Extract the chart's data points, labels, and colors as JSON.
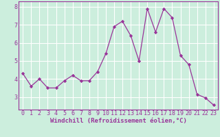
{
  "x": [
    0,
    1,
    2,
    3,
    4,
    5,
    6,
    7,
    8,
    9,
    10,
    11,
    12,
    13,
    14,
    15,
    16,
    17,
    18,
    19,
    20,
    21,
    22,
    23
  ],
  "y": [
    4.3,
    3.6,
    4.0,
    3.5,
    3.5,
    3.9,
    4.2,
    3.9,
    3.9,
    4.4,
    5.4,
    6.9,
    7.2,
    6.4,
    5.0,
    7.9,
    6.6,
    7.9,
    7.4,
    5.3,
    4.8,
    3.15,
    2.95,
    2.55
  ],
  "line_color": "#993399",
  "marker": "D",
  "marker_size": 2.2,
  "bg_color": "#cceedd",
  "grid_color": "#ffffff",
  "xlabel": "Windchill (Refroidissement éolien,°C)",
  "xlabel_color": "#993399",
  "tick_color": "#993399",
  "ylim": [
    2.3,
    8.3
  ],
  "xlim": [
    -0.5,
    23.5
  ],
  "yticks": [
    3,
    4,
    5,
    6,
    7,
    8
  ],
  "xticks": [
    0,
    1,
    2,
    3,
    4,
    5,
    6,
    7,
    8,
    9,
    10,
    11,
    12,
    13,
    14,
    15,
    16,
    17,
    18,
    19,
    20,
    21,
    22,
    23
  ],
  "spine_color": "#993399",
  "label_fontsize": 6.5,
  "tick_fontsize": 6.0
}
